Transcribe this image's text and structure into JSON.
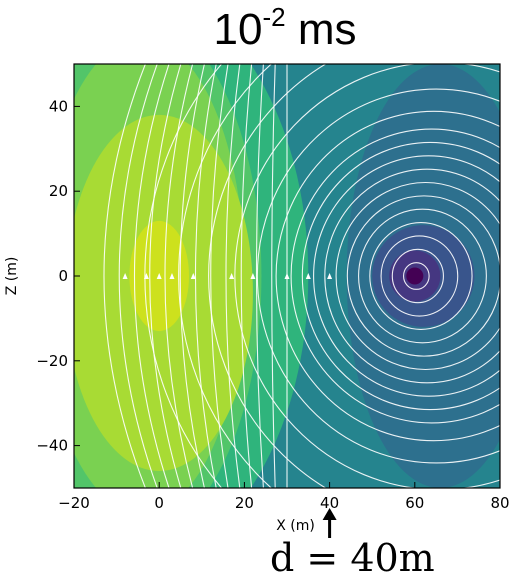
{
  "chart_data": {
    "type": "heatmap",
    "title": {
      "base": "10",
      "exponent": "-2",
      "unit": "ms"
    },
    "xlabel": "X (m)",
    "ylabel": "Z (m)",
    "xlim": [
      -20,
      80
    ],
    "ylim": [
      -50,
      50
    ],
    "xticks": [
      "−20",
      "0",
      "20",
      "40",
      "60",
      "80"
    ],
    "yticks": [
      "−40",
      "−20",
      "0",
      "20",
      "40"
    ],
    "xtick_values": [
      -20,
      0,
      20,
      40,
      60,
      80
    ],
    "ytick_values": [
      -40,
      -20,
      0,
      20,
      40
    ],
    "field": {
      "description_visible": "filled contours with white streamlines",
      "dipole_center": [
        60,
        0
      ],
      "broad_peak_center": [
        0,
        0
      ]
    },
    "contour_colors": [
      "#cde11d",
      "#a8db34",
      "#7ad151",
      "#52c569",
      "#2fb47c",
      "#21a585",
      "#25848e",
      "#2d708e",
      "#39558c",
      "#453781",
      "#440154"
    ],
    "streamline_color": "#ffffff",
    "annotation": {
      "text": "d = 40m",
      "x": 40,
      "arrow": true
    }
  }
}
